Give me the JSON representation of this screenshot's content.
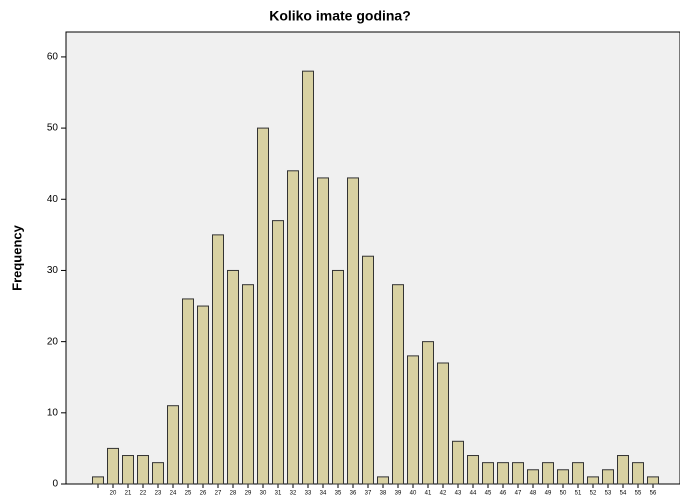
{
  "chart_data": {
    "type": "bar",
    "title": "Koliko imate godina?",
    "y_label": "Frequency",
    "categories": [
      null,
      "20",
      "21",
      "22",
      "23",
      "24",
      "25",
      "26",
      "27",
      "28",
      "29",
      "30",
      "31",
      "32",
      "33",
      "34",
      "35",
      "36",
      "37",
      "38",
      "39",
      "40",
      "41",
      "42",
      "43",
      "44",
      "45",
      "46",
      "47",
      "48",
      "49",
      "50",
      "51",
      "52",
      "53",
      "54",
      "55",
      "56"
    ],
    "values": [
      1,
      5,
      4,
      4,
      3,
      11,
      26,
      25,
      35,
      30,
      28,
      50,
      37,
      44,
      58,
      43,
      30,
      43,
      32,
      1,
      28,
      18,
      20,
      17,
      6,
      4,
      3,
      3,
      3,
      2,
      3,
      2,
      3,
      1,
      2,
      4,
      3,
      1
    ],
    "color": "#d8d1a2",
    "ylim": [
      0,
      63.5
    ],
    "yticks": [
      0,
      10,
      20,
      30,
      40,
      50,
      60
    ]
  }
}
